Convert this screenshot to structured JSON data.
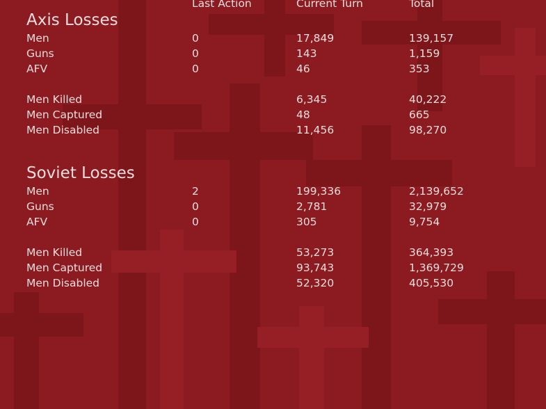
{
  "header": {
    "columns": [
      "Last Action",
      "Current Turn",
      "Total"
    ]
  },
  "sections": [
    {
      "title": "Axis Losses",
      "rows": [
        {
          "label": "Men",
          "last_action": "0",
          "current_turn": "17,849",
          "total": "139,157"
        },
        {
          "label": "Guns",
          "last_action": "0",
          "current_turn": "143",
          "total": "1,159"
        },
        {
          "label": "AFV",
          "last_action": "0",
          "current_turn": "46",
          "total": "353"
        },
        {
          "label": "Men Killed",
          "current_turn": "6,345",
          "total": "40,222"
        },
        {
          "label": "Men Captured",
          "current_turn": "48",
          "total": "665"
        },
        {
          "label": "Men Disabled",
          "current_turn": "11,456",
          "total": "98,270"
        }
      ]
    },
    {
      "title": "Soviet Losses",
      "rows": [
        {
          "label": "Men",
          "last_action": "2",
          "current_turn": "199,336",
          "total": "2,139,652"
        },
        {
          "label": "Guns",
          "last_action": "0",
          "current_turn": "2,781",
          "total": "32,979"
        },
        {
          "label": "AFV",
          "last_action": "0",
          "current_turn": "305",
          "total": "9,754"
        },
        {
          "label": "Men Killed",
          "current_turn": "53,273",
          "total": "364,393"
        },
        {
          "label": "Men Captured",
          "current_turn": "93,743",
          "total": "1,369,729"
        },
        {
          "label": "Men Disabled",
          "current_turn": "52,320",
          "total": "405,530"
        }
      ]
    }
  ]
}
